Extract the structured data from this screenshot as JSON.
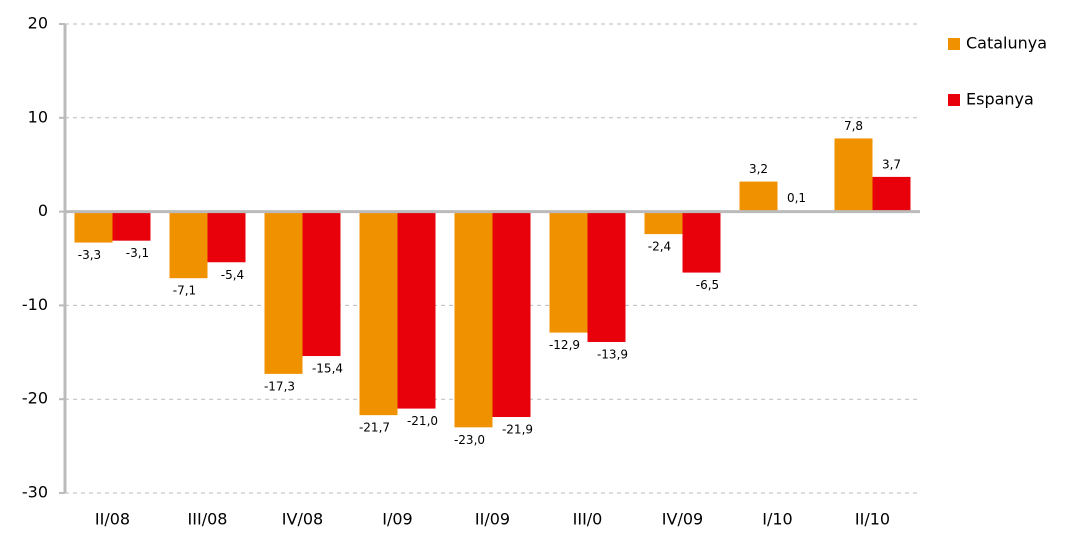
{
  "chart_data": {
    "type": "bar",
    "categories": [
      "II/08",
      "III/08",
      "IV/08",
      "I/09",
      "II/09",
      "III/0",
      "IV/09",
      "I/10",
      "II/10"
    ],
    "series": [
      {
        "name": "Catalunya",
        "color": "#f09100",
        "values": [
          -3.3,
          -7.1,
          -17.3,
          -21.7,
          -23.0,
          -12.9,
          -2.4,
          3.2,
          7.8
        ],
        "value_labels": [
          "-3,3",
          "-7,1",
          "-17,3",
          "-21,7",
          "-23,0",
          "-12,9",
          "-2,4",
          "3,2",
          "7,8"
        ]
      },
      {
        "name": "Espanya",
        "color": "#e8000b",
        "values": [
          -3.1,
          -5.4,
          -15.4,
          -21.0,
          -21.9,
          -13.9,
          -6.5,
          0.1,
          3.7
        ],
        "value_labels": [
          "-3,1",
          "-5,4",
          "-15,4",
          "-21,0",
          "-21,9",
          "-13,9",
          "-6,5",
          "0,1",
          "3,7"
        ]
      }
    ],
    "ylim": [
      -30,
      20
    ],
    "yticks": [
      -30,
      -20,
      -10,
      0,
      10,
      20
    ],
    "grid": true,
    "legend": "right"
  }
}
